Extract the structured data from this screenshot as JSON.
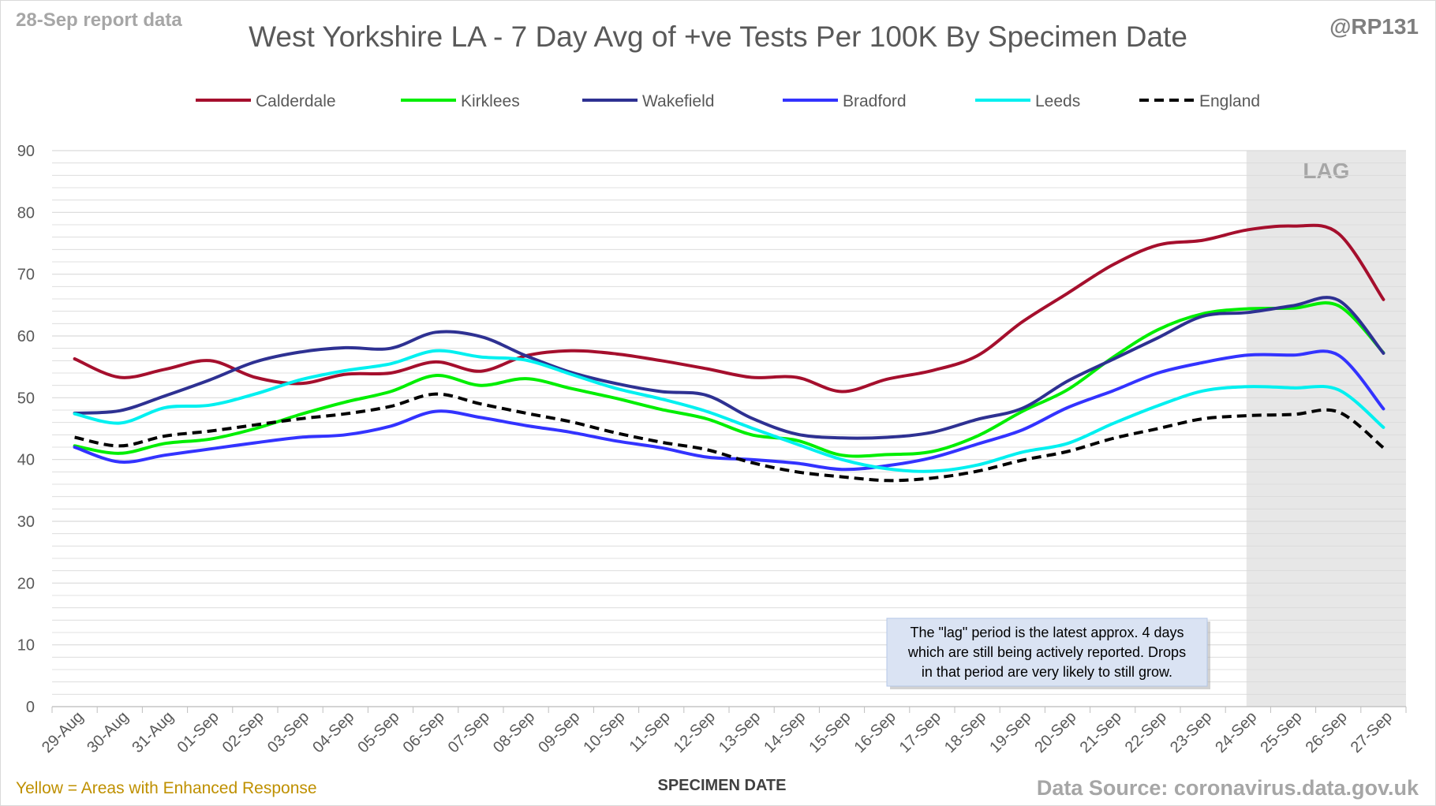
{
  "header": {
    "report_date": "28-Sep report data",
    "handle": "@RP131"
  },
  "footer": {
    "enhanced_note": "Yellow = Areas with Enhanced Response",
    "source": "Data Source: coronavirus.data.gov.uk"
  },
  "annotation": {
    "lag_label": "LAG",
    "note_lines": [
      "The \"lag\" period is the latest approx. 4 days",
      "which are still being actively reported. Drops",
      "in that period are very likely to still grow."
    ]
  },
  "colors": {
    "grid": "#d9d9d9",
    "lag_fill": "#e7e7e7",
    "note_bg": "#dae3f3"
  },
  "chart_data": {
    "type": "line",
    "title": "West Yorkshire LA - 7 Day Avg of +ve Tests Per 100K By Specimen Date",
    "xlabel": "SPECIMEN DATE",
    "ylabel": "",
    "ylim": [
      0,
      90
    ],
    "yticks": [
      0,
      10,
      20,
      30,
      40,
      50,
      60,
      70,
      80,
      90
    ],
    "grid": true,
    "legend_position": "top",
    "lag_period": [
      "24-Sep",
      "27-Sep"
    ],
    "categories": [
      "29-Aug",
      "30-Aug",
      "31-Aug",
      "01-Sep",
      "02-Sep",
      "03-Sep",
      "04-Sep",
      "05-Sep",
      "06-Sep",
      "07-Sep",
      "08-Sep",
      "09-Sep",
      "10-Sep",
      "11-Sep",
      "12-Sep",
      "13-Sep",
      "14-Sep",
      "15-Sep",
      "16-Sep",
      "17-Sep",
      "18-Sep",
      "19-Sep",
      "20-Sep",
      "21-Sep",
      "22-Sep",
      "23-Sep",
      "24-Sep",
      "25-Sep",
      "26-Sep",
      "27-Sep"
    ],
    "series": [
      {
        "name": "Calderdale",
        "color": "#a50f2d",
        "dashed": false,
        "values": [
          56.3,
          53.3,
          54.6,
          56.0,
          53.3,
          52.3,
          53.8,
          54.0,
          55.8,
          54.3,
          56.8,
          57.6,
          57.1,
          56.0,
          54.7,
          53.3,
          53.3,
          51.0,
          53.0,
          54.4,
          56.8,
          62.3,
          66.9,
          71.5,
          74.7,
          75.5,
          77.2,
          77.8,
          76.6,
          65.9
        ]
      },
      {
        "name": "Kirklees",
        "color": "#00ee00",
        "dashed": false,
        "values": [
          42.2,
          41.0,
          42.6,
          43.3,
          45.0,
          47.3,
          49.3,
          51.0,
          53.6,
          52.0,
          53.1,
          51.5,
          49.9,
          48.1,
          46.6,
          44.0,
          43.1,
          40.7,
          40.8,
          41.3,
          43.8,
          47.8,
          51.3,
          56.5,
          61.0,
          63.6,
          64.4,
          64.5,
          64.9,
          57.3
        ]
      },
      {
        "name": "Wakefield",
        "color": "#2e3192",
        "dashed": false,
        "values": [
          47.5,
          47.9,
          50.3,
          52.9,
          55.8,
          57.4,
          58.1,
          58.0,
          60.6,
          59.9,
          56.8,
          54.1,
          52.3,
          51.0,
          50.4,
          46.7,
          44.1,
          43.5,
          43.6,
          44.4,
          46.5,
          48.3,
          52.7,
          56.2,
          59.7,
          63.2,
          63.8,
          64.9,
          65.8,
          57.2
        ]
      },
      {
        "name": "Bradford",
        "color": "#3333ff",
        "dashed": false,
        "values": [
          42.0,
          39.6,
          40.7,
          41.7,
          42.7,
          43.6,
          44.0,
          45.4,
          47.8,
          46.8,
          45.5,
          44.4,
          43.0,
          41.9,
          40.4,
          40.0,
          39.4,
          38.4,
          39.0,
          40.3,
          42.5,
          44.8,
          48.4,
          51.1,
          54.0,
          55.7,
          56.9,
          56.9,
          56.9,
          48.2
        ]
      },
      {
        "name": "Leeds",
        "color": "#00f0f0",
        "dashed": false,
        "values": [
          47.4,
          45.9,
          48.4,
          48.8,
          50.6,
          52.9,
          54.4,
          55.5,
          57.6,
          56.6,
          56.1,
          53.8,
          51.5,
          49.8,
          47.8,
          45.1,
          42.5,
          40.0,
          38.5,
          38.1,
          39.1,
          41.2,
          42.6,
          45.8,
          48.7,
          51.1,
          51.8,
          51.6,
          51.3,
          45.2
        ]
      },
      {
        "name": "England",
        "color": "#000000",
        "dashed": true,
        "values": [
          43.6,
          42.2,
          43.8,
          44.6,
          45.6,
          46.6,
          47.4,
          48.6,
          50.6,
          49.0,
          47.5,
          46.1,
          44.3,
          42.8,
          41.6,
          39.5,
          38.0,
          37.2,
          36.6,
          37.0,
          38.1,
          39.9,
          41.3,
          43.4,
          45.0,
          46.6,
          47.1,
          47.3,
          47.7,
          41.9
        ]
      }
    ]
  }
}
